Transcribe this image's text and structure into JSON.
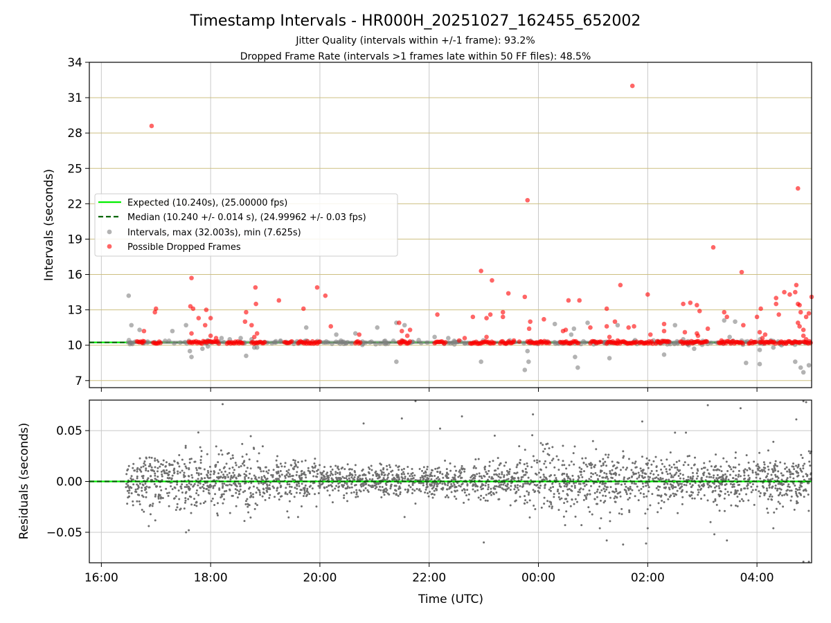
{
  "chart_data": [
    {
      "type": "scatter",
      "title": "Timestamp Intervals - HR000H_20251027_162455_652002",
      "subtitle_lines": [
        "Jitter Quality (intervals within +/-1 frame): 93.2%",
        "Dropped Frame Rate (intervals >1 frames late within 50 FF files): 48.5%"
      ],
      "xlabel": "",
      "ylabel": "Intervals (seconds)",
      "x_range_hours": [
        15.78,
        29.0
      ],
      "ylim": [
        6.4,
        34
      ],
      "yticks": [
        7,
        10,
        13,
        16,
        19,
        22,
        25,
        28,
        31,
        34
      ],
      "ytick_labels": [
        "7",
        "10",
        "13",
        "16",
        "19",
        "22",
        "25",
        "28",
        "31",
        "34"
      ],
      "grid": true,
      "grid_note": "vertical grid lines grey; horizontal grid lines olive/tan",
      "legend_position": "center-left",
      "legend": [
        {
          "label": "Expected (10.240s), (25.00000 fps)",
          "marker": "solid-line",
          "color": "#00ee00"
        },
        {
          "label": "Median (10.240 +/- 0.014 s), (24.99962 +/- 0.03 fps)",
          "marker": "dashed-line",
          "color": "#006400"
        },
        {
          "label": "Intervals, max (32.003s), min (7.625s)",
          "marker": "circle",
          "color": "#808080"
        },
        {
          "label": "Possible Dropped Frames",
          "marker": "circle",
          "color": "#ff0000"
        }
      ],
      "reference_lines": {
        "expected": 10.24,
        "median": 10.24
      },
      "series": [
        {
          "name": "Intervals, max (32.003s), min (7.625s)",
          "color": "#808080",
          "points": [
            [
              16.5,
              14.2
            ],
            [
              16.55,
              11.7
            ],
            [
              16.7,
              11.3
            ],
            [
              17.3,
              11.2
            ],
            [
              17.55,
              11.7
            ],
            [
              17.62,
              9.5
            ],
            [
              17.65,
              9.0
            ],
            [
              17.85,
              9.7
            ],
            [
              17.95,
              9.9
            ],
            [
              18.2,
              10.6
            ],
            [
              18.35,
              10.5
            ],
            [
              18.55,
              10.6
            ],
            [
              18.65,
              9.1
            ],
            [
              18.75,
              10.5
            ],
            [
              18.8,
              9.8
            ],
            [
              18.85,
              9.8
            ],
            [
              19.75,
              11.5
            ],
            [
              20.3,
              10.9
            ],
            [
              20.65,
              11.0
            ],
            [
              21.05,
              11.5
            ],
            [
              21.4,
              8.6
            ],
            [
              21.4,
              11.9
            ],
            [
              21.55,
              11.7
            ],
            [
              22.1,
              10.7
            ],
            [
              22.35,
              10.6
            ],
            [
              22.95,
              8.6
            ],
            [
              23.75,
              7.9
            ],
            [
              23.8,
              9.5
            ],
            [
              23.82,
              8.6
            ],
            [
              24.3,
              11.8
            ],
            [
              24.6,
              10.9
            ],
            [
              24.65,
              11.4
            ],
            [
              24.67,
              9.0
            ],
            [
              24.72,
              8.1
            ],
            [
              24.9,
              11.9
            ],
            [
              25.3,
              8.9
            ],
            [
              25.45,
              11.7
            ],
            [
              26.3,
              9.2
            ],
            [
              26.5,
              11.7
            ],
            [
              26.65,
              10.5
            ],
            [
              26.75,
              10.0
            ],
            [
              26.85,
              9.7
            ],
            [
              27.4,
              12.1
            ],
            [
              27.5,
              10.7
            ],
            [
              27.6,
              12.0
            ],
            [
              27.8,
              8.5
            ],
            [
              28.05,
              9.6
            ],
            [
              28.05,
              8.4
            ],
            [
              28.3,
              9.8
            ],
            [
              28.45,
              10.0
            ],
            [
              28.7,
              8.6
            ],
            [
              28.8,
              8.1
            ],
            [
              28.85,
              7.7
            ],
            [
              28.95,
              8.3
            ]
          ]
        },
        {
          "name": "Possible Dropped Frames",
          "color": "#ff0000",
          "points": [
            [
              16.75,
              10.2
            ],
            [
              16.78,
              11.2
            ],
            [
              16.92,
              28.6
            ],
            [
              16.98,
              12.8
            ],
            [
              17.0,
              13.1
            ],
            [
              17.65,
              15.7
            ],
            [
              17.63,
              13.3
            ],
            [
              17.68,
              13.1
            ],
            [
              17.65,
              11.0
            ],
            [
              17.78,
              12.3
            ],
            [
              17.9,
              11.7
            ],
            [
              17.92,
              13.0
            ],
            [
              18.0,
              12.3
            ],
            [
              18.0,
              10.8
            ],
            [
              18.1,
              10.6
            ],
            [
              18.63,
              12.0
            ],
            [
              18.65,
              12.8
            ],
            [
              18.75,
              11.7
            ],
            [
              18.82,
              14.9
            ],
            [
              18.83,
              13.5
            ],
            [
              18.85,
              11.0
            ],
            [
              18.8,
              10.7
            ],
            [
              19.25,
              13.8
            ],
            [
              19.7,
              13.1
            ],
            [
              19.95,
              14.9
            ],
            [
              20.1,
              14.2
            ],
            [
              20.2,
              11.6
            ],
            [
              20.72,
              10.9
            ],
            [
              21.45,
              11.9
            ],
            [
              21.5,
              10.4
            ],
            [
              21.5,
              11.2
            ],
            [
              21.6,
              10.8
            ],
            [
              21.65,
              11.3
            ],
            [
              22.15,
              12.6
            ],
            [
              22.8,
              12.4
            ],
            [
              22.95,
              16.3
            ],
            [
              23.05,
              12.3
            ],
            [
              23.15,
              15.5
            ],
            [
              23.12,
              12.6
            ],
            [
              23.35,
              12.8
            ],
            [
              23.35,
              12.4
            ],
            [
              23.45,
              14.4
            ],
            [
              23.05,
              10.7
            ],
            [
              23.75,
              14.1
            ],
            [
              23.85,
              12.0
            ],
            [
              23.83,
              11.4
            ],
            [
              24.1,
              12.2
            ],
            [
              23.8,
              22.3
            ],
            [
              24.45,
              11.2
            ],
            [
              24.55,
              13.8
            ],
            [
              24.5,
              11.3
            ],
            [
              24.75,
              13.8
            ],
            [
              24.95,
              11.5
            ],
            [
              25.25,
              13.1
            ],
            [
              25.25,
              11.6
            ],
            [
              25.4,
              12.0
            ],
            [
              25.3,
              10.7
            ],
            [
              25.5,
              15.1
            ],
            [
              25.65,
              11.5
            ],
            [
              25.75,
              11.6
            ],
            [
              25.72,
              32.0
            ],
            [
              26.0,
              14.3
            ],
            [
              26.05,
              10.9
            ],
            [
              26.3,
              11.8
            ],
            [
              26.3,
              11.2
            ],
            [
              26.68,
              11.1
            ],
            [
              26.65,
              13.5
            ],
            [
              26.78,
              13.6
            ],
            [
              26.9,
              13.4
            ],
            [
              26.95,
              12.9
            ],
            [
              26.9,
              11.0
            ],
            [
              26.92,
              10.8
            ],
            [
              27.1,
              11.4
            ],
            [
              27.2,
              18.3
            ],
            [
              27.4,
              12.8
            ],
            [
              27.45,
              12.4
            ],
            [
              27.72,
              16.2
            ],
            [
              27.75,
              11.7
            ],
            [
              28.0,
              12.4
            ],
            [
              28.05,
              11.1
            ],
            [
              28.07,
              13.1
            ],
            [
              28.1,
              10.6
            ],
            [
              28.15,
              10.9
            ],
            [
              28.35,
              14.0
            ],
            [
              28.35,
              13.5
            ],
            [
              28.4,
              12.6
            ],
            [
              28.5,
              14.5
            ],
            [
              28.6,
              14.3
            ],
            [
              28.7,
              14.5
            ],
            [
              28.72,
              15.1
            ],
            [
              28.75,
              13.5
            ],
            [
              28.78,
              13.4
            ],
            [
              28.8,
              12.8
            ],
            [
              28.75,
              11.9
            ],
            [
              28.78,
              11.6
            ],
            [
              28.85,
              11.3
            ],
            [
              28.75,
              23.3
            ],
            [
              28.9,
              12.4
            ],
            [
              28.95,
              12.7
            ],
            [
              29.0,
              14.1
            ],
            [
              28.85,
              10.8
            ],
            [
              28.9,
              10.5
            ],
            [
              27.35,
              10.4
            ],
            [
              26.2,
              10.3
            ],
            [
              25.45,
              10.4
            ],
            [
              24.05,
              10.3
            ],
            [
              23.55,
              10.4
            ],
            [
              23.65,
              10.3
            ],
            [
              22.65,
              10.6
            ],
            [
              22.55,
              10.4
            ]
          ],
          "dense_bands_at_10_24": [
            [
              16.65,
              16.8
            ],
            [
              16.95,
              17.1
            ],
            [
              17.6,
              18.15
            ],
            [
              18.3,
              18.6
            ],
            [
              18.75,
              19.0
            ],
            [
              19.35,
              19.5
            ],
            [
              19.6,
              20.0
            ],
            [
              20.65,
              20.75
            ],
            [
              21.45,
              21.65
            ],
            [
              22.1,
              22.3
            ],
            [
              22.75,
              23.2
            ],
            [
              23.3,
              23.55
            ],
            [
              23.8,
              24.2
            ],
            [
              24.4,
              24.75
            ],
            [
              24.95,
              25.15
            ],
            [
              25.25,
              25.8
            ],
            [
              25.85,
              26.1
            ],
            [
              26.15,
              26.4
            ],
            [
              26.6,
              27.1
            ],
            [
              27.3,
              27.75
            ],
            [
              27.85,
              28.0
            ],
            [
              28.05,
              28.35
            ],
            [
              28.4,
              28.8
            ],
            [
              28.85,
              29.0
            ]
          ]
        }
      ]
    },
    {
      "type": "scatter",
      "xlabel": "Time (UTC)",
      "ylabel": "Residuals (seconds)",
      "x_range_hours": [
        15.78,
        29.0
      ],
      "xticks": [
        16,
        18,
        20,
        22,
        24,
        26,
        28
      ],
      "xtick_labels": [
        "16:00",
        "18:00",
        "20:00",
        "22:00",
        "00:00",
        "02:00",
        "04:00"
      ],
      "ylim": [
        -0.08,
        0.08
      ],
      "yticks": [
        -0.05,
        0.0,
        0.05
      ],
      "ytick_labels": [
        "−0.05",
        "0.00",
        "0.05"
      ],
      "grid": true,
      "reference_lines": {
        "expected": 0.0,
        "median": 0.0
      },
      "series": [
        {
          "name": "Residuals",
          "color": "#6e6e6e",
          "x_start": 16.45,
          "x_end": 29.0,
          "approx_point_count": 2600,
          "spread_profile": [
            [
              16.45,
              0.012
            ],
            [
              17.5,
              0.015
            ],
            [
              18.3,
              0.017
            ],
            [
              19.2,
              0.011
            ],
            [
              20.5,
              0.008
            ],
            [
              21.5,
              0.007
            ],
            [
              22.5,
              0.008
            ],
            [
              23.5,
              0.01
            ],
            [
              24.2,
              0.015
            ],
            [
              25.0,
              0.014
            ],
            [
              26.0,
              0.013
            ],
            [
              27.0,
              0.011
            ],
            [
              28.0,
              0.011
            ],
            [
              29.0,
              0.014
            ]
          ],
          "notable_points": [
            [
              18.22,
              0.076
            ],
            [
              21.75,
              0.079
            ],
            [
              22.6,
              0.064
            ],
            [
              21.5,
              0.062
            ],
            [
              23.9,
              0.066
            ],
            [
              25.9,
              0.059
            ],
            [
              27.1,
              0.075
            ],
            [
              27.7,
              0.072
            ],
            [
              28.85,
              0.079
            ],
            [
              28.9,
              0.078
            ],
            [
              25.25,
              -0.058
            ],
            [
              25.55,
              -0.062
            ],
            [
              25.97,
              -0.061
            ],
            [
              26.0,
              -0.046
            ],
            [
              27.15,
              -0.04
            ],
            [
              27.45,
              -0.058
            ],
            [
              27.22,
              -0.052
            ],
            [
              23.0,
              -0.06
            ],
            [
              17.55,
              -0.05
            ],
            [
              17.6,
              -0.048
            ],
            [
              28.85,
              -0.079
            ],
            [
              28.95,
              -0.079
            ],
            [
              28.3,
              -0.046
            ],
            [
              19.6,
              -0.035
            ],
            [
              21.55,
              -0.035
            ],
            [
              26.7,
              0.048
            ],
            [
              26.5,
              0.048
            ],
            [
              28.72,
              0.061
            ],
            [
              28.3,
              0.039
            ],
            [
              22.2,
              0.052
            ],
            [
              23.2,
              0.045
            ],
            [
              20.8,
              0.057
            ]
          ]
        }
      ]
    }
  ]
}
